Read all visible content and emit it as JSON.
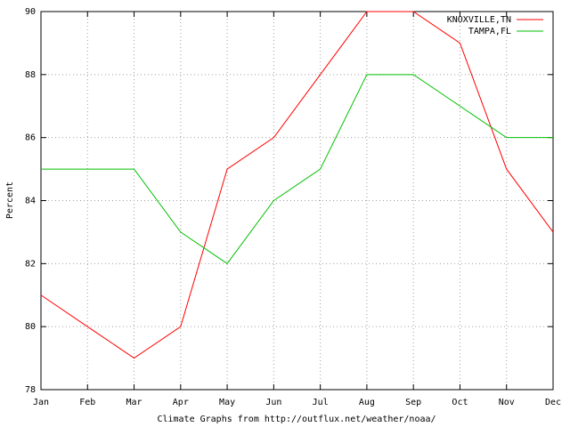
{
  "chart_data": {
    "type": "line",
    "ylabel": "Percent",
    "xlabel": "Climate Graphs from http://outflux.net/weather/noaa/",
    "categories": [
      "Jan",
      "Feb",
      "Mar",
      "Apr",
      "May",
      "Jun",
      "Jul",
      "Aug",
      "Sep",
      "Oct",
      "Nov",
      "Dec"
    ],
    "series": [
      {
        "name": "KNOXVILLE,TN",
        "color": "#ff0000",
        "values": [
          81,
          80,
          79,
          80,
          85,
          86,
          88,
          90,
          90,
          89,
          85,
          83
        ]
      },
      {
        "name": "TAMPA,FL",
        "color": "#00c000",
        "values": [
          85,
          85,
          85,
          83,
          82,
          84,
          85,
          88,
          88,
          87,
          86,
          86
        ]
      }
    ],
    "ylim": [
      78,
      90
    ],
    "yticks": [
      78,
      80,
      82,
      84,
      86,
      88,
      90
    ],
    "grid": true,
    "legend": "top-right"
  }
}
